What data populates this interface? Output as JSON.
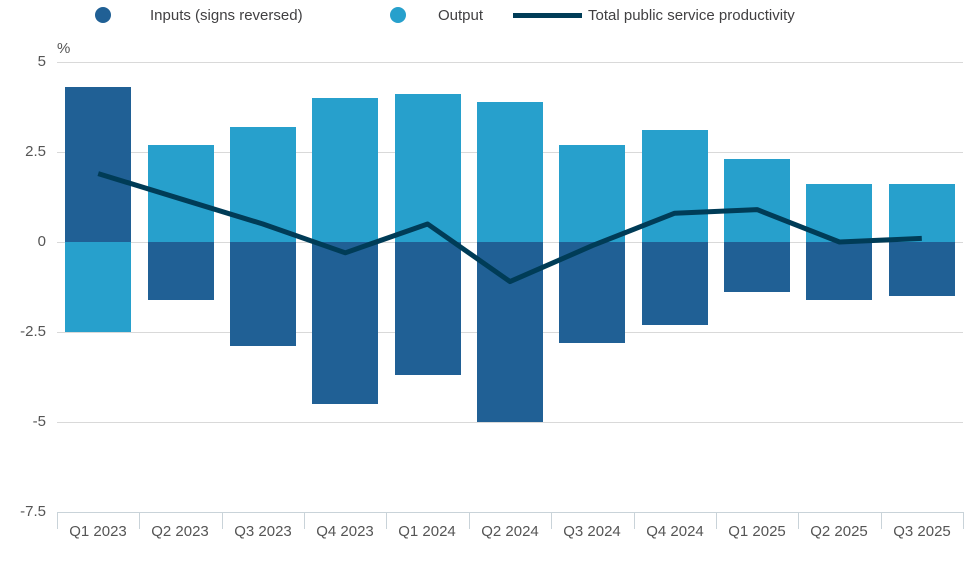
{
  "legend": {
    "items": [
      {
        "key": "inputs",
        "label": "Inputs (signs reversed)",
        "swatch": "circle",
        "color": "#206095"
      },
      {
        "key": "output",
        "label": "Output",
        "swatch": "circle",
        "color": "#27a0cc"
      },
      {
        "key": "productivity",
        "label": "Total public service productivity",
        "swatch": "line",
        "color": "#003c57"
      }
    ]
  },
  "chart_data": {
    "type": "bar",
    "subtype": "stacked-bars-with-line",
    "title": "",
    "unit_label": "%",
    "categories": [
      "Q1 2023",
      "Q2 2023",
      "Q3 2023",
      "Q4 2023",
      "Q1 2024",
      "Q2 2024",
      "Q3 2024",
      "Q4 2024",
      "Q1 2025",
      "Q2 2025",
      "Q3 2025"
    ],
    "series": [
      {
        "key": "inputs",
        "name": "Inputs (signs reversed)",
        "type": "bar",
        "color": "#206095",
        "values": [
          4.3,
          -1.6,
          -2.9,
          -4.5,
          -3.7,
          -5.0,
          -2.8,
          -2.3,
          -1.4,
          -1.6,
          -1.5
        ]
      },
      {
        "key": "output",
        "name": "Output",
        "type": "bar",
        "color": "#27a0cc",
        "values": [
          -2.5,
          2.7,
          3.2,
          4.0,
          4.1,
          3.9,
          2.7,
          3.1,
          2.3,
          1.6,
          1.6
        ]
      },
      {
        "key": "productivity",
        "name": "Total public service productivity",
        "type": "line",
        "color": "#003c57",
        "values": [
          1.9,
          1.2,
          0.5,
          -0.3,
          0.5,
          -1.1,
          -0.1,
          0.8,
          0.9,
          0.0,
          0.1
        ]
      }
    ],
    "yticks": [
      5,
      2.5,
      0,
      -2.5,
      -5,
      -7.5
    ],
    "ylim": [
      -7.5,
      5
    ],
    "grid": true,
    "legend_position": "top"
  },
  "colors": {
    "grid": "#d9d9d9",
    "axis": "#c9d3d9",
    "legend_text": "#414042",
    "tick_text": "#555555",
    "background": "#ffffff"
  }
}
